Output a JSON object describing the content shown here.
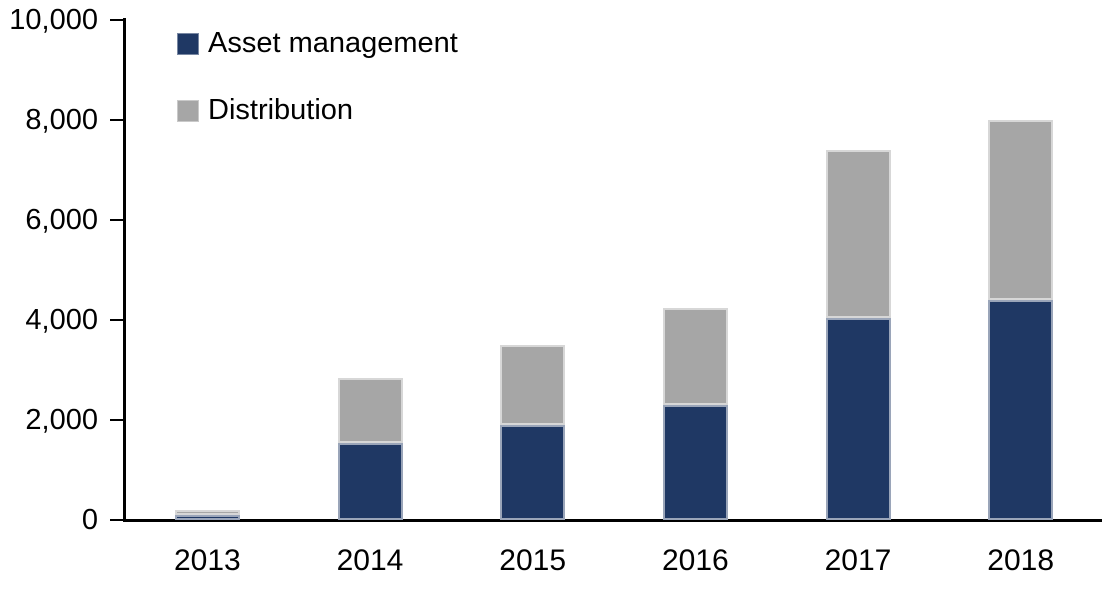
{
  "chart_data": {
    "type": "bar",
    "stacked": true,
    "title": "",
    "categories": [
      "2013",
      "2014",
      "2015",
      "2016",
      "2017",
      "2018"
    ],
    "series": [
      {
        "name": "Asset management",
        "color": "#1f3864",
        "values": [
          100,
          1550,
          1900,
          2300,
          4050,
          4400
        ]
      },
      {
        "name": "Distribution",
        "color": "#a6a6a6",
        "values": [
          100,
          1300,
          1600,
          1950,
          3350,
          3600
        ]
      }
    ],
    "xlabel": "",
    "ylabel": "",
    "ylim": [
      0,
      10000
    ],
    "ytick_values": [
      0,
      2000,
      4000,
      6000,
      8000,
      10000
    ],
    "ytick_labels": [
      "0",
      "2,000",
      "4,000",
      "6,000",
      "8,000",
      "10,000"
    ],
    "grid": false,
    "legend_position": "top-left",
    "axis_color": "#000000",
    "background_color": "#ffffff"
  }
}
